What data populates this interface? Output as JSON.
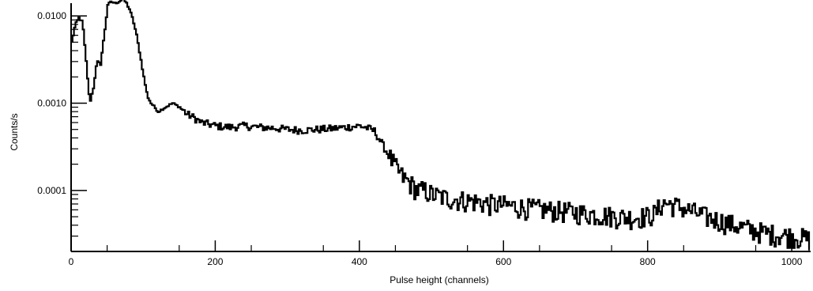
{
  "chart_data": {
    "type": "line",
    "title": "",
    "xlabel": "Pulse height (channels)",
    "ylabel": "Counts/s",
    "xlim": [
      0,
      1024
    ],
    "ylim": [
      2e-05,
      0.014
    ],
    "y_scale": "log",
    "grid": false,
    "x_ticks": [
      0,
      200,
      400,
      600,
      800,
      1000
    ],
    "x_tick_labels": [
      "0",
      "200",
      "400",
      "600",
      "800",
      "1000"
    ],
    "y_ticks": [
      0.0001,
      0.001,
      0.01
    ],
    "y_tick_labels": [
      "0.0001",
      "0.0010",
      "0.0100"
    ],
    "line_color": "#000000",
    "series": [
      {
        "x": [
          0,
          5,
          10,
          15,
          20,
          25,
          30,
          35,
          40,
          45,
          50,
          55,
          60,
          65,
          70,
          75,
          80,
          85,
          90,
          95,
          100,
          105,
          110,
          115,
          120,
          130,
          140,
          150,
          160,
          170,
          180,
          200,
          220,
          240,
          260,
          280,
          300,
          320,
          340,
          360,
          380,
          400,
          410,
          420,
          430,
          440,
          450,
          460,
          470,
          480,
          490,
          500,
          520,
          540,
          560,
          580,
          600,
          620,
          640,
          660,
          680,
          700,
          720,
          740,
          760,
          780,
          800,
          810,
          820,
          830,
          840,
          850,
          860,
          870,
          880,
          900,
          920,
          940,
          960,
          980,
          1000,
          1010,
          1020,
          1024
        ],
        "y": [
          0.005,
          0.008,
          0.0095,
          0.0085,
          0.003,
          0.001,
          0.0015,
          0.003,
          0.0028,
          0.006,
          0.0135,
          0.0145,
          0.014,
          0.0145,
          0.0155,
          0.0145,
          0.012,
          0.009,
          0.006,
          0.0035,
          0.002,
          0.0012,
          0.001,
          0.0009,
          0.0008,
          0.0009,
          0.001,
          0.0009,
          0.00075,
          0.00068,
          0.0006,
          0.00055,
          0.00053,
          0.00055,
          0.00053,
          0.00052,
          0.0005,
          0.00049,
          0.0005,
          0.00051,
          0.00053,
          0.00055,
          0.00052,
          0.00048,
          0.00035,
          0.00025,
          0.00018,
          0.00014,
          0.00012,
          0.0001,
          0.0001,
          9e-05,
          8.2e-05,
          7.8e-05,
          7.5e-05,
          7e-05,
          6.8e-05,
          6.5e-05,
          6.2e-05,
          6e-05,
          5.8e-05,
          5.6e-05,
          5.4e-05,
          5.2e-05,
          5e-05,
          4.9e-05,
          5.1e-05,
          5.5e-05,
          7.2e-05,
          7e-05,
          6.6e-05,
          6.2e-05,
          5.8e-05,
          5.4e-05,
          5e-05,
          4.5e-05,
          4e-05,
          3.6e-05,
          3.3e-05,
          3.1e-05,
          3e-05,
          2.9e-05,
          2.8e-05,
          2.7e-05
        ]
      }
    ]
  }
}
